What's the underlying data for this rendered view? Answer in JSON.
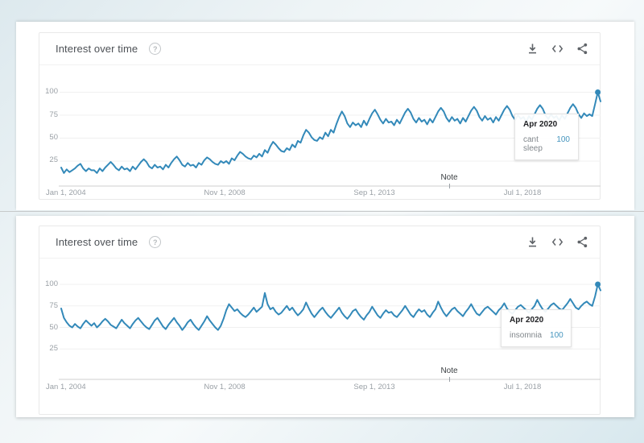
{
  "widgets": [
    {
      "title": "Interest over time",
      "help": "?",
      "note_label": "Note",
      "y_tick_labels": [
        "100",
        "75",
        "50",
        "25"
      ],
      "x_tick_labels": [
        "Jan 1, 2004",
        "Nov 1, 2008",
        "Sep 1, 2013",
        "Jul 1, 2018"
      ],
      "tooltip": {
        "date": "Apr 2020",
        "term": "cant sleep",
        "value": "100"
      }
    },
    {
      "title": "Interest over time",
      "help": "?",
      "note_label": "Note",
      "y_tick_labels": [
        "100",
        "75",
        "50",
        "25"
      ],
      "x_tick_labels": [
        "Jan 1, 2004",
        "Nov 1, 2008",
        "Sep 1, 2013",
        "Jul 1, 2018"
      ],
      "tooltip": {
        "date": "Apr 2020",
        "term": "insomnia",
        "value": "100"
      }
    }
  ],
  "chart_data": [
    {
      "type": "line",
      "title": "Interest over time",
      "x_start": "Jan 2004",
      "x_end": "May 2020",
      "x_tick_labels": [
        "Jan 1, 2004",
        "Nov 1, 2008",
        "Sep 1, 2013",
        "Jul 1, 2018"
      ],
      "y_ticks": [
        100,
        75,
        50,
        25
      ],
      "ylim": [
        0,
        100
      ],
      "grid": true,
      "legend": "none",
      "line_color": "#3389b9",
      "grid_color": "#f0f0f0",
      "axis_color": "#cfcfcf",
      "highlight": {
        "index": 195,
        "x_label": "Apr 2020",
        "term": "cant sleep",
        "value": 100
      },
      "series": [
        {
          "name": "cant sleep",
          "values": [
            18,
            12,
            16,
            13,
            15,
            17,
            20,
            22,
            17,
            14,
            17,
            15,
            15,
            12,
            17,
            14,
            18,
            21,
            24,
            21,
            17,
            15,
            19,
            16,
            17,
            14,
            19,
            16,
            20,
            24,
            27,
            24,
            19,
            17,
            21,
            18,
            19,
            16,
            21,
            18,
            23,
            27,
            30,
            26,
            21,
            19,
            23,
            20,
            21,
            18,
            23,
            21,
            26,
            29,
            27,
            24,
            22,
            21,
            25,
            23,
            25,
            22,
            28,
            26,
            31,
            35,
            33,
            30,
            28,
            27,
            31,
            29,
            33,
            30,
            37,
            34,
            41,
            46,
            43,
            39,
            36,
            35,
            39,
            37,
            43,
            40,
            47,
            45,
            53,
            59,
            56,
            51,
            48,
            47,
            51,
            49,
            56,
            52,
            59,
            56,
            65,
            73,
            79,
            74,
            66,
            62,
            67,
            64,
            66,
            62,
            69,
            64,
            71,
            77,
            81,
            76,
            70,
            66,
            71,
            67,
            68,
            64,
            70,
            66,
            72,
            78,
            82,
            78,
            71,
            67,
            72,
            68,
            70,
            65,
            71,
            67,
            73,
            79,
            83,
            79,
            72,
            68,
            73,
            69,
            71,
            66,
            72,
            68,
            74,
            80,
            84,
            80,
            73,
            69,
            74,
            70,
            72,
            67,
            73,
            69,
            75,
            81,
            85,
            81,
            74,
            70,
            75,
            71,
            73,
            68,
            74,
            70,
            76,
            82,
            86,
            82,
            75,
            71,
            76,
            72,
            74,
            69,
            75,
            71,
            77,
            83,
            87,
            83,
            76,
            72,
            77,
            74,
            76,
            74,
            87,
            100,
            90
          ]
        }
      ]
    },
    {
      "type": "line",
      "title": "Interest over time",
      "x_start": "Jan 2004",
      "x_end": "May 2020",
      "x_tick_labels": [
        "Jan 1, 2004",
        "Nov 1, 2008",
        "Sep 1, 2013",
        "Jul 1, 2018"
      ],
      "y_ticks": [
        100,
        75,
        50,
        25
      ],
      "ylim": [
        0,
        100
      ],
      "grid": true,
      "legend": "none",
      "line_color": "#3389b9",
      "grid_color": "#f0f0f0",
      "axis_color": "#cfcfcf",
      "highlight": {
        "index": 195,
        "x_label": "Apr 2020",
        "term": "insomnia",
        "value": 100
      },
      "series": [
        {
          "name": "insomnia",
          "values": [
            72,
            61,
            56,
            52,
            50,
            54,
            51,
            49,
            54,
            58,
            55,
            52,
            55,
            50,
            53,
            57,
            60,
            57,
            53,
            51,
            49,
            54,
            59,
            55,
            52,
            49,
            54,
            58,
            61,
            57,
            53,
            50,
            48,
            53,
            58,
            61,
            56,
            51,
            48,
            53,
            57,
            61,
            56,
            52,
            47,
            51,
            56,
            59,
            54,
            50,
            47,
            52,
            57,
            63,
            58,
            54,
            50,
            47,
            52,
            60,
            70,
            77,
            73,
            69,
            71,
            67,
            64,
            62,
            65,
            69,
            73,
            68,
            71,
            74,
            90,
            77,
            71,
            73,
            68,
            65,
            67,
            71,
            75,
            70,
            73,
            68,
            64,
            67,
            71,
            79,
            72,
            66,
            62,
            66,
            70,
            73,
            68,
            64,
            61,
            65,
            69,
            73,
            67,
            63,
            60,
            64,
            69,
            71,
            66,
            62,
            59,
            64,
            68,
            74,
            69,
            64,
            61,
            66,
            70,
            67,
            68,
            64,
            62,
            66,
            70,
            75,
            70,
            65,
            62,
            67,
            71,
            68,
            70,
            65,
            62,
            67,
            71,
            80,
            73,
            67,
            63,
            67,
            71,
            73,
            69,
            66,
            63,
            68,
            72,
            77,
            71,
            66,
            64,
            68,
            72,
            74,
            71,
            68,
            65,
            70,
            73,
            78,
            72,
            68,
            66,
            70,
            74,
            76,
            73,
            70,
            67,
            71,
            75,
            82,
            76,
            71,
            68,
            72,
            76,
            78,
            75,
            72,
            70,
            74,
            78,
            83,
            78,
            73,
            71,
            75,
            78,
            80,
            77,
            75,
            86,
            100,
            93
          ]
        }
      ]
    }
  ]
}
